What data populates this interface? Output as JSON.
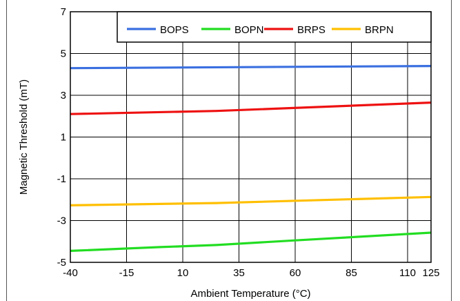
{
  "chart_data": {
    "type": "line",
    "xlabel": "Ambient Temperature (°C)",
    "ylabel": "Magnetic Threshold (mT)",
    "x_ticks": [
      "-40",
      "-15",
      "10",
      "35",
      "60",
      "85",
      "110",
      "125"
    ],
    "y_ticks": [
      "7",
      "5",
      "3",
      "1",
      "-1",
      "-3",
      "-5"
    ],
    "xlim": [
      -40,
      125
    ],
    "ylim": [
      -5,
      7
    ],
    "grid": true,
    "legend_position": "top-right",
    "series": [
      {
        "name": "BOPS",
        "color": "#3a6fe0",
        "x": [
          -40,
          125
        ],
        "y": [
          4.3,
          4.4
        ]
      },
      {
        "name": "BOPN",
        "color": "#22dd22",
        "x": [
          -40,
          0,
          25,
          60,
          125
        ],
        "y": [
          -4.45,
          -4.27,
          -4.17,
          -3.95,
          -3.58
        ]
      },
      {
        "name": "BRPS",
        "color": "#ee1111",
        "x": [
          -40,
          25,
          125
        ],
        "y": [
          2.1,
          2.25,
          2.65
        ]
      },
      {
        "name": "BRPN",
        "color": "#ffbf00",
        "x": [
          -40,
          25,
          125
        ],
        "y": [
          -2.27,
          -2.16,
          -1.87
        ]
      }
    ]
  }
}
